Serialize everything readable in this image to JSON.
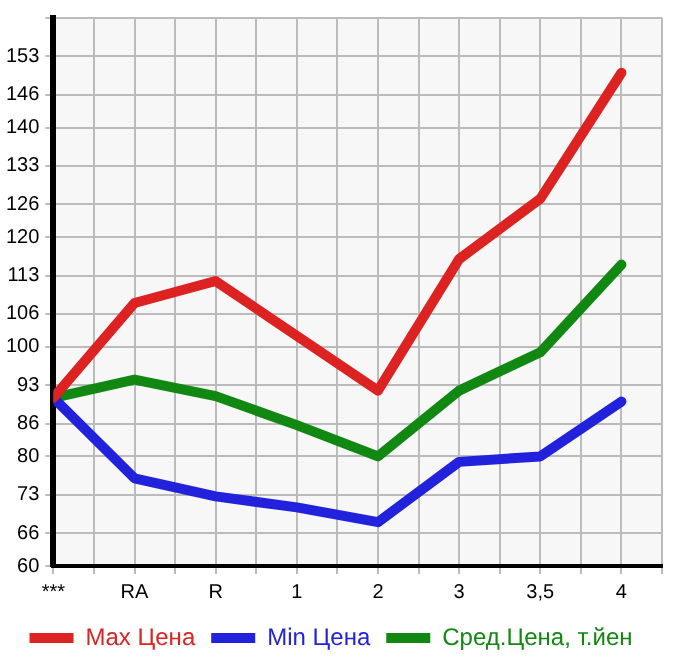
{
  "chart_data": {
    "type": "line",
    "categories": [
      "***",
      "RA",
      "R",
      "1",
      "2",
      "3",
      "3,5",
      "4"
    ],
    "series": [
      {
        "name": "Max Цена",
        "color": "#dd2222",
        "values": [
          90.7,
          108,
          112,
          102,
          92,
          116,
          127,
          150
        ]
      },
      {
        "name": "Min Цена",
        "color": "#2222dd",
        "values": [
          90.7,
          76,
          72.7,
          70.7,
          68,
          79,
          80,
          90
        ]
      },
      {
        "name": "Сред.Цена, т.йен",
        "color": "#118811",
        "values": [
          90.7,
          94,
          91,
          85.7,
          80,
          92,
          99,
          115
        ]
      }
    ],
    "ylim": [
      60,
      160
    ],
    "yticks": [
      60,
      66,
      73,
      80,
      86,
      93,
      100,
      106,
      113,
      120,
      126,
      133,
      140,
      146,
      153,
      {
        "value": 160,
        "label": null
      }
    ],
    "grid": true,
    "legend": "bottom",
    "marker": "none",
    "line_style": "solid"
  }
}
